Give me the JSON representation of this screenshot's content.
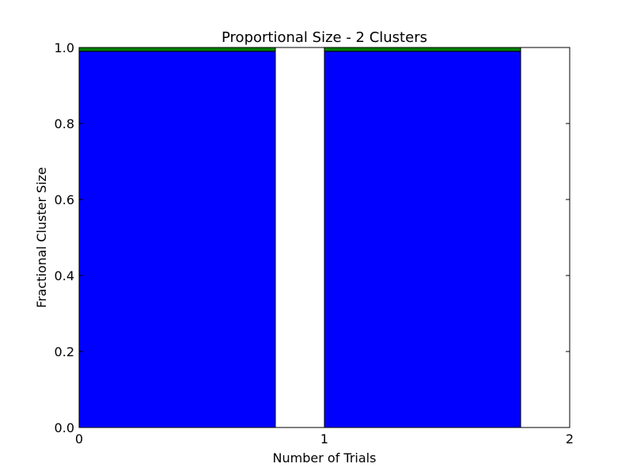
{
  "chart_data": {
    "type": "bar",
    "stacked": true,
    "title": "Proportional Size - 2 Clusters",
    "xlabel": "Number of Trials",
    "ylabel": "Fractional Cluster Size",
    "xlim": [
      0,
      2
    ],
    "ylim": [
      0,
      1.0
    ],
    "x": [
      0,
      1
    ],
    "bar_width": 0.8,
    "xticks": [
      "0",
      "1",
      "2"
    ],
    "yticks": [
      "0.0",
      "0.2",
      "0.4",
      "0.6",
      "0.8",
      "1.0"
    ],
    "grid": false,
    "series": [
      {
        "values": [
          0.99,
          0.99
        ],
        "color": "#0000ff"
      },
      {
        "values": [
          0.01,
          0.01
        ],
        "color": "#008000"
      }
    ]
  }
}
